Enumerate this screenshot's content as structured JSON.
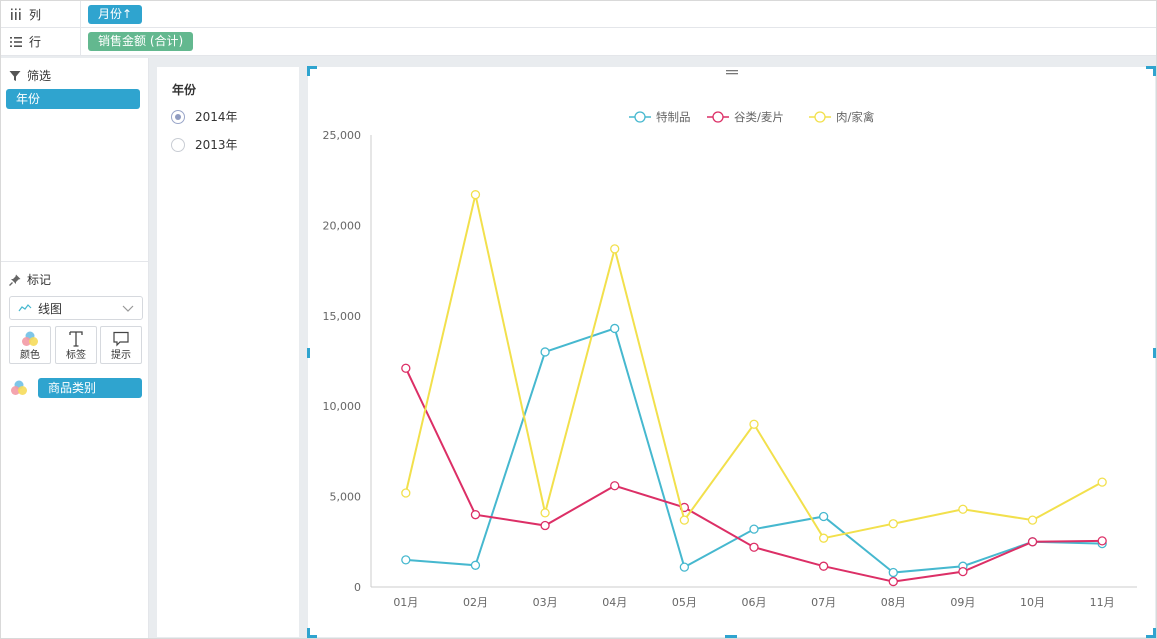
{
  "shelves": {
    "columns": {
      "label": "列",
      "pill": "月份↑"
    },
    "rows": {
      "label": "行",
      "pill": "销售金额 (合计)"
    }
  },
  "left_panel": {
    "filter_title": "筛选",
    "filter_field": "年份",
    "marks_title": "标记",
    "mark_type": "线图",
    "mark_buttons": {
      "color": "颜色",
      "label": "标签",
      "tooltip": "提示"
    },
    "color_field": "商品类别"
  },
  "filter_panel": {
    "title": "年份",
    "options": [
      {
        "label": "2014年",
        "selected": true
      },
      {
        "label": "2013年",
        "selected": false
      }
    ]
  },
  "colors": {
    "accent": "#2fa4cf",
    "green_pill": "#63b88f",
    "series": [
      "#46b8cf",
      "#dc2f66",
      "#f2e04c"
    ]
  },
  "chart_data": {
    "type": "line",
    "categories": [
      "01月",
      "02月",
      "03月",
      "04月",
      "05月",
      "06月",
      "07月",
      "08月",
      "09月",
      "10月",
      "11月"
    ],
    "series": [
      {
        "name": "特制品",
        "values": [
          1500,
          1200,
          13000,
          14300,
          1100,
          3200,
          3900,
          800,
          1150,
          2500,
          2400
        ]
      },
      {
        "name": "谷类/麦片",
        "values": [
          12100,
          4000,
          3400,
          5600,
          4400,
          2200,
          1150,
          300,
          850,
          2500,
          2550
        ]
      },
      {
        "name": "肉/家禽",
        "values": [
          5200,
          21700,
          4100,
          18700,
          3700,
          9000,
          2700,
          3500,
          4300,
          3700,
          5800
        ]
      }
    ],
    "yticks": [
      "0",
      "5,000",
      "10,000",
      "15,000",
      "20,000",
      "25,000"
    ],
    "ylim": [
      0,
      25000
    ],
    "legend": "top-center",
    "grid": false
  }
}
